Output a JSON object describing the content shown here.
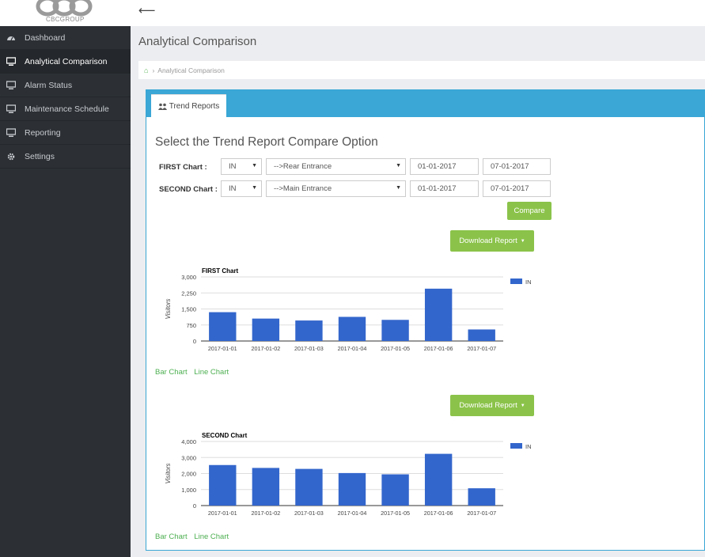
{
  "brand": {
    "logo_text": "CBCGROUP"
  },
  "topbar": {
    "back_icon": "back-arrow-icon"
  },
  "sidebar": {
    "items": [
      {
        "label": "Dashboard",
        "icon": "dashboard-icon",
        "active": false
      },
      {
        "label": "Analytical Comparison",
        "icon": "monitor-icon",
        "active": true
      },
      {
        "label": "Alarm Status",
        "icon": "monitor-icon",
        "active": false
      },
      {
        "label": "Maintenance Schedule",
        "icon": "monitor-icon",
        "active": false
      },
      {
        "label": "Reporting",
        "icon": "monitor-icon",
        "active": false
      },
      {
        "label": "Settings",
        "icon": "gear-icon",
        "active": false
      }
    ]
  },
  "page": {
    "title": "Analytical Comparison",
    "breadcrumb": {
      "home_icon": "home-icon",
      "current": "Analytical Comparison"
    }
  },
  "panel": {
    "tab_label": "Trend Reports",
    "tab_icon": "users-icon",
    "section_title": "Select the Trend Report Compare Option",
    "first_row": {
      "label": "FIRST Chart :",
      "direction": "IN",
      "location": "-->Rear Entrance",
      "start_date": "01-01-2017",
      "end_date": "07-01-2017"
    },
    "second_row": {
      "label": "SECOND Chart :",
      "direction": "IN",
      "location": "-->Main Entrance",
      "start_date": "01-01-2017",
      "end_date": "07-01-2017"
    },
    "compare_label": "Compare",
    "download_label": "Download Report",
    "links": {
      "bar": "Bar Chart",
      "line": "Line Chart"
    }
  },
  "colors": {
    "accent": "#3aa7d6",
    "button": "#8bc34a",
    "bar": "#3366cc",
    "sidebar": "#2c3035",
    "link": "#4caf50"
  },
  "chart_data": [
    {
      "type": "bar",
      "title": "FIRST Chart",
      "ylabel": "Visitors",
      "xlabel": "",
      "categories": [
        "2017-01-01",
        "2017-01-02",
        "2017-01-03",
        "2017-01-04",
        "2017-01-05",
        "2017-01-06",
        "2017-01-07"
      ],
      "series": [
        {
          "name": "IN",
          "values": [
            1350,
            1050,
            960,
            1130,
            990,
            2450,
            540
          ]
        }
      ],
      "ylim": [
        0,
        3000
      ],
      "yticks": [
        "0",
        "750",
        "1,500",
        "2,250",
        "3,000"
      ],
      "grid": true,
      "legend": "right"
    },
    {
      "type": "bar",
      "title": "SECOND Chart",
      "ylabel": "Visitors",
      "xlabel": "",
      "categories": [
        "2017-01-01",
        "2017-01-02",
        "2017-01-03",
        "2017-01-04",
        "2017-01-05",
        "2017-01-06",
        "2017-01-07"
      ],
      "series": [
        {
          "name": "IN",
          "values": [
            2530,
            2350,
            2290,
            2030,
            1950,
            3230,
            1080
          ]
        }
      ],
      "ylim": [
        0,
        4000
      ],
      "yticks": [
        "0",
        "1,000",
        "2,000",
        "3,000",
        "4,000"
      ],
      "grid": true,
      "legend": "right"
    }
  ]
}
